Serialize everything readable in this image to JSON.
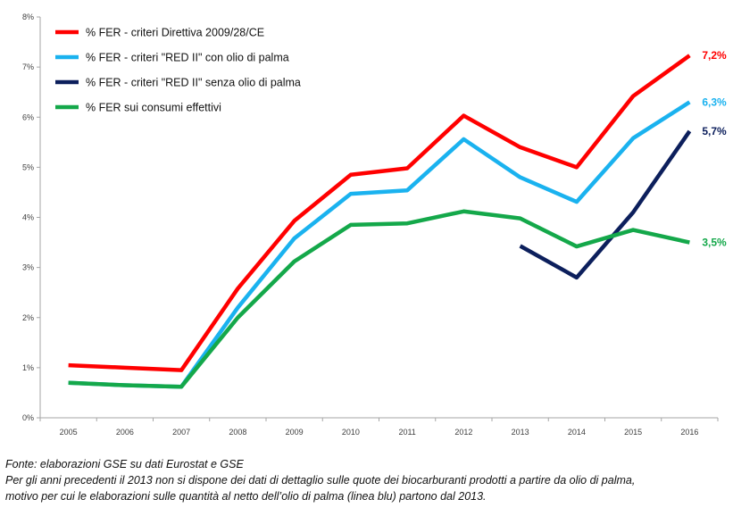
{
  "chart_data": {
    "type": "line",
    "categories": [
      "2005",
      "2006",
      "2007",
      "2008",
      "2009",
      "2010",
      "2011",
      "2012",
      "2013",
      "2014",
      "2015",
      "2016"
    ],
    "ylim": [
      0,
      8
    ],
    "yticks": [
      "0%",
      "1%",
      "2%",
      "3%",
      "4%",
      "5%",
      "6%",
      "7%",
      "8%"
    ],
    "grid": false,
    "legend_position": "top-left",
    "series": [
      {
        "name": "% FER - criteri Direttiva 2009/28/CE",
        "color": "#ff0000",
        "values": [
          1.05,
          1.0,
          0.95,
          2.58,
          3.93,
          4.85,
          4.98,
          6.03,
          5.4,
          5.0,
          6.42,
          7.23
        ],
        "end_label": "7,2%"
      },
      {
        "name": "% FER - criteri \"RED II\" con olio di palma",
        "color": "#1ab2ef",
        "values": [
          0.7,
          0.65,
          0.62,
          2.2,
          3.58,
          4.47,
          4.54,
          5.56,
          4.8,
          4.31,
          5.58,
          6.3
        ],
        "end_label": "6,3%"
      },
      {
        "name": "% FER - criteri \"RED II\" senza olio di palma",
        "color": "#0c1f5c",
        "values": [
          null,
          null,
          null,
          null,
          null,
          null,
          null,
          null,
          3.43,
          2.8,
          4.1,
          5.72
        ],
        "end_label": "5,7%"
      },
      {
        "name": "% FER sui consumi effettivi",
        "color": "#14a84a",
        "values": [
          0.7,
          0.65,
          0.62,
          2.0,
          3.12,
          3.85,
          3.88,
          4.12,
          3.98,
          3.42,
          3.75,
          3.5
        ],
        "end_label": "3,5%"
      }
    ]
  },
  "footnotes": {
    "source": "Fonte: elaborazioni GSE su dati Eurostat e GSE",
    "note_line1": "Per gli anni precedenti il 2013 non si dispone dei dati di dettaglio sulle quote dei biocarburanti prodotti a partire da olio di palma,",
    "note_line2": "motivo per cui le elaborazioni sulle quantità al netto dell’olio di palma (linea blu) partono dal 2013."
  }
}
